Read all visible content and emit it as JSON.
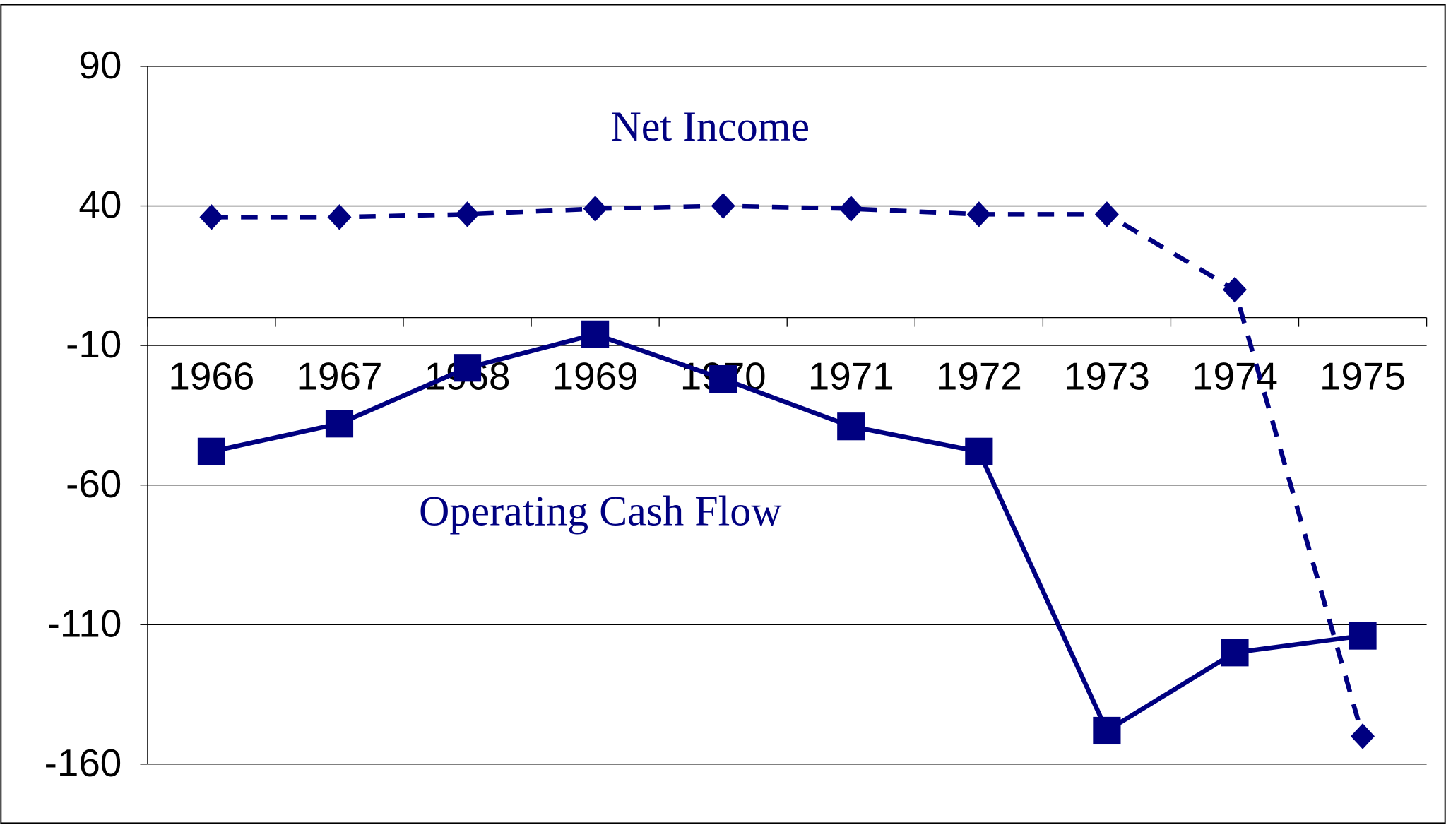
{
  "chart_data": {
    "type": "line",
    "categories": [
      "1966",
      "1967",
      "1968",
      "1969",
      "1970",
      "1971",
      "1972",
      "1973",
      "1974",
      "1975"
    ],
    "series": [
      {
        "name": "Net Income",
        "color": "#000080",
        "marker": "diamond",
        "dashed": true,
        "values": [
          36,
          36,
          37,
          39,
          40,
          39,
          37,
          37,
          10,
          -150
        ]
      },
      {
        "name": "Operating Cash Flow",
        "color": "#000080",
        "marker": "square",
        "dashed": false,
        "values": [
          -48,
          -38,
          -18,
          -6,
          -22,
          -39,
          -48,
          -148,
          -120,
          -114
        ]
      }
    ],
    "ylim": [
      -160,
      90
    ],
    "yticks": [
      90,
      40,
      -10,
      -60,
      -110,
      -160
    ],
    "grid": true
  }
}
